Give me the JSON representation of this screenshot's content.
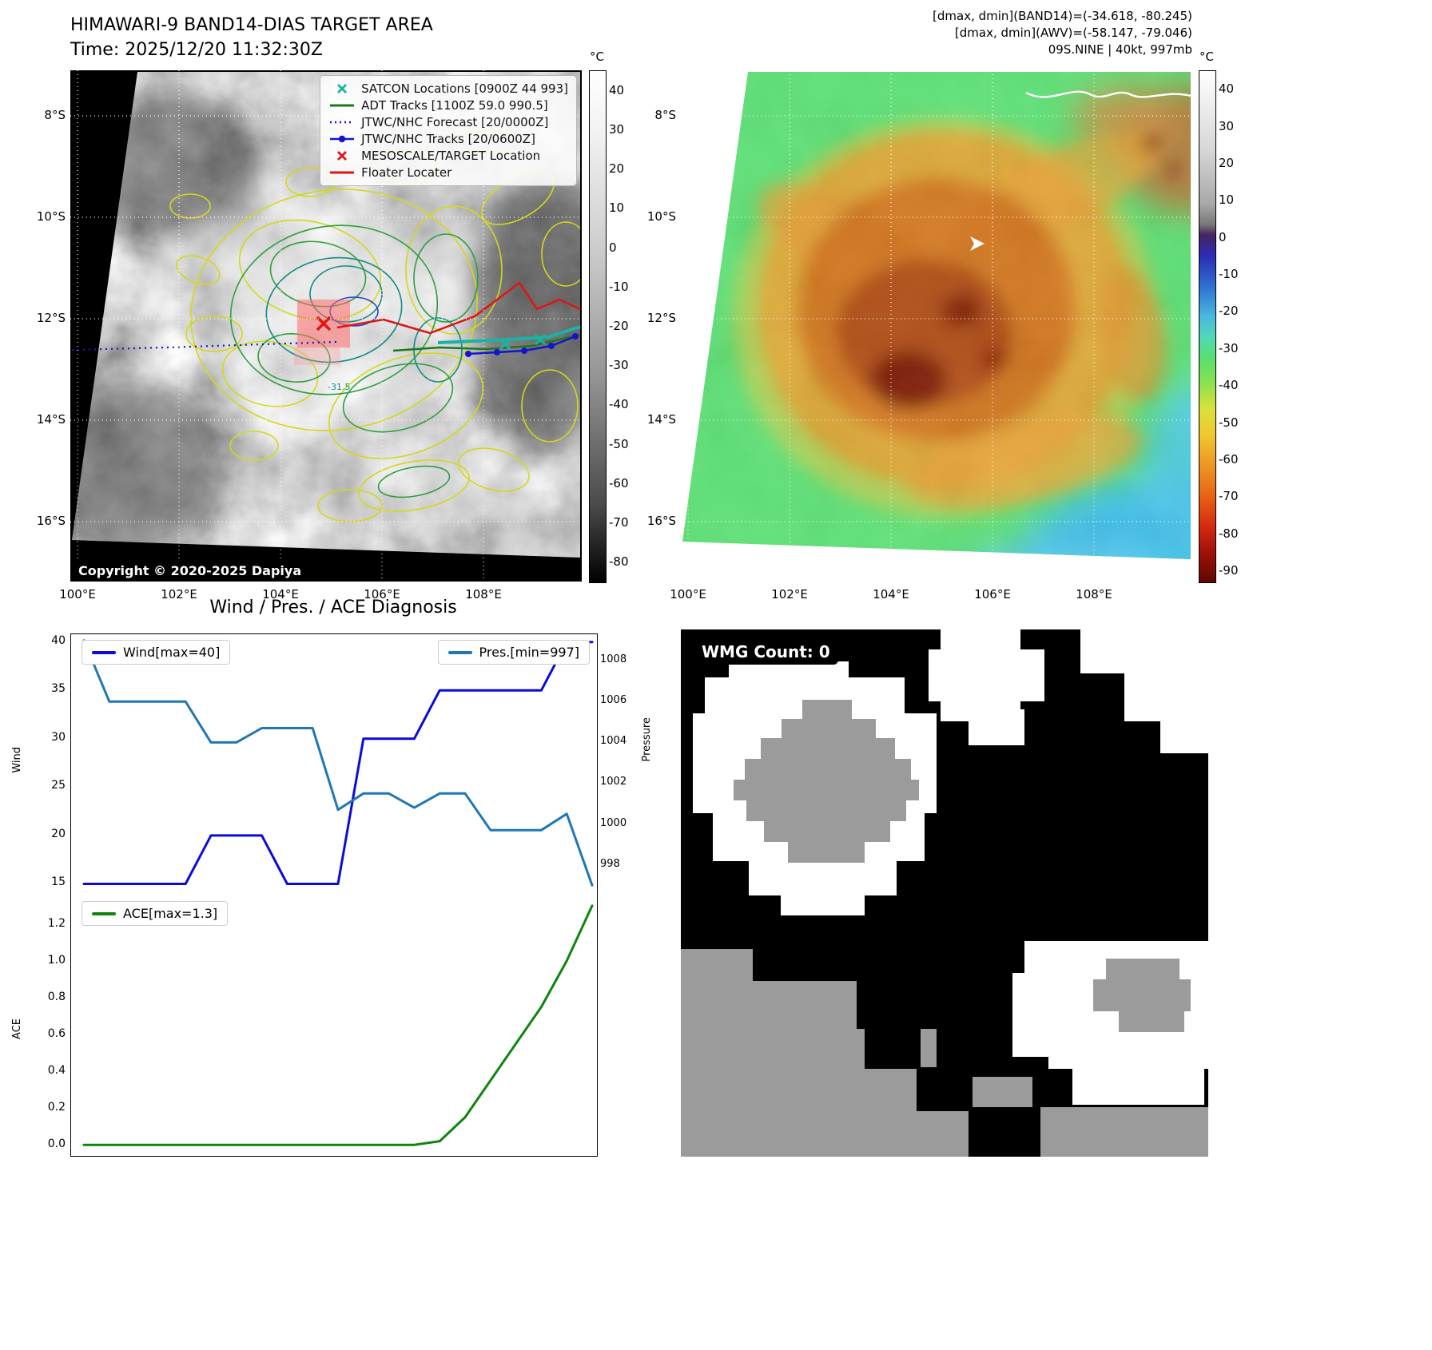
{
  "panel1": {
    "title": "HIMAWARI-9 BAND14-DIAS TARGET AREA",
    "time_line": "Time: 2025/12/20 11:32:30Z",
    "copyright": "Copyright © 2020-2025 Dapiya",
    "contour_label": "-31.5",
    "lat_ticks": [
      "8°S",
      "10°S",
      "12°S",
      "14°S",
      "16°S"
    ],
    "lon_ticks": [
      "100°E",
      "102°E",
      "104°E",
      "106°E",
      "108°E"
    ],
    "colorbar": {
      "unit": "°C",
      "ticks": [
        "40",
        "30",
        "20",
        "10",
        "0",
        "-10",
        "-20",
        "-30",
        "-40",
        "-50",
        "-60",
        "-70",
        "-80"
      ]
    },
    "legend_items": [
      {
        "label": "SATCON Locations [0900Z 44 993]",
        "marker": "x",
        "color": "#18b3a6"
      },
      {
        "label": "ADT Tracks [1100Z 59.0 990.5]",
        "marker": "line",
        "color": "#1a7a1a"
      },
      {
        "label": "JTWC/NHC Forecast [20/0000Z]",
        "marker": "dotted",
        "color": "#1414cc"
      },
      {
        "label": "JTWC/NHC Tracks [20/0600Z]",
        "marker": "line-dot",
        "color": "#1414cc"
      },
      {
        "label": "MESOSCALE/TARGET Location",
        "marker": "x",
        "color": "#e01414"
      },
      {
        "label": "Floater Locater",
        "marker": "line",
        "color": "#e01414"
      }
    ]
  },
  "panel2": {
    "header_lines": [
      "[dmax, dmin](BAND14)=(-34.618, -80.245)",
      "[dmax, dmin](AWV)=(-58.147, -79.046)",
      "09S.NINE | 40kt, 997mb"
    ],
    "lat_ticks": [
      "8°S",
      "10°S",
      "12°S",
      "14°S",
      "16°S"
    ],
    "lon_ticks": [
      "100°E",
      "102°E",
      "104°E",
      "106°E",
      "108°E"
    ],
    "colorbar": {
      "unit": "°C",
      "ticks": [
        "40",
        "30",
        "20",
        "10",
        "0",
        "-10",
        "-20",
        "-30",
        "-40",
        "-50",
        "-60",
        "-70",
        "-80",
        "-90"
      ]
    }
  },
  "panel3": {
    "title": "Wind / Pres. / ACE Diagnosis",
    "wind_legend": "Wind[max=40]",
    "pres_legend": "Pres.[min=997]",
    "ace_legend": "ACE[max=1.3]",
    "ylabel_wind": "Wind",
    "ylabel_pressure": "Pressure",
    "ylabel_ace": "ACE",
    "wind_ticks": [
      "40",
      "35",
      "30",
      "25",
      "20",
      "15"
    ],
    "pres_ticks": [
      "1008",
      "1006",
      "1004",
      "1002",
      "1000",
      "998"
    ],
    "ace_ticks": [
      "1.2",
      "1.0",
      "0.8",
      "0.6",
      "0.4",
      "0.2",
      "0.0"
    ]
  },
  "panel4": {
    "label": "WMG Count: 0"
  },
  "chart_data": [
    {
      "type": "line",
      "title": "Wind / Pres. / ACE Diagnosis",
      "x_unit": "time steps (unlabeled axis)",
      "series": [
        {
          "name": "Wind[max=40]",
          "axis": "left",
          "color": "#0a0adc",
          "values": [
            15,
            15,
            15,
            15,
            15,
            20,
            20,
            20,
            15,
            15,
            15,
            30,
            30,
            30,
            35,
            35,
            35,
            35,
            35,
            40,
            40
          ]
        },
        {
          "name": "Pres.[min=997]",
          "axis": "right",
          "color": "#1f77b4",
          "values": [
            1009,
            1006,
            1006,
            1006,
            1006,
            1004,
            1004,
            1004.7,
            1004.7,
            1004.7,
            1000.7,
            1001.5,
            1001.5,
            1000.8,
            1001.5,
            1001.5,
            999.7,
            999.7,
            999.7,
            1000.5,
            997
          ]
        }
      ],
      "ylim_left": [
        13.8,
        40.8
      ],
      "ylim_right": [
        996.5,
        1009.3
      ],
      "ylabel_left": "Wind",
      "ylabel_right": "Pressure",
      "legend_position": "upper-left and upper-right"
    },
    {
      "type": "line",
      "series": [
        {
          "name": "ACE[max=1.3]",
          "axis": "left",
          "color": "#0f840f",
          "values": [
            0,
            0,
            0,
            0,
            0,
            0,
            0,
            0,
            0,
            0,
            0,
            0,
            0,
            0,
            0.02,
            0.15,
            0.35,
            0.55,
            0.75,
            1.0,
            1.3
          ]
        }
      ],
      "ylim_left": [
        -0.06,
        1.36
      ],
      "ylabel_left": "ACE",
      "legend_position": "upper-left"
    }
  ]
}
